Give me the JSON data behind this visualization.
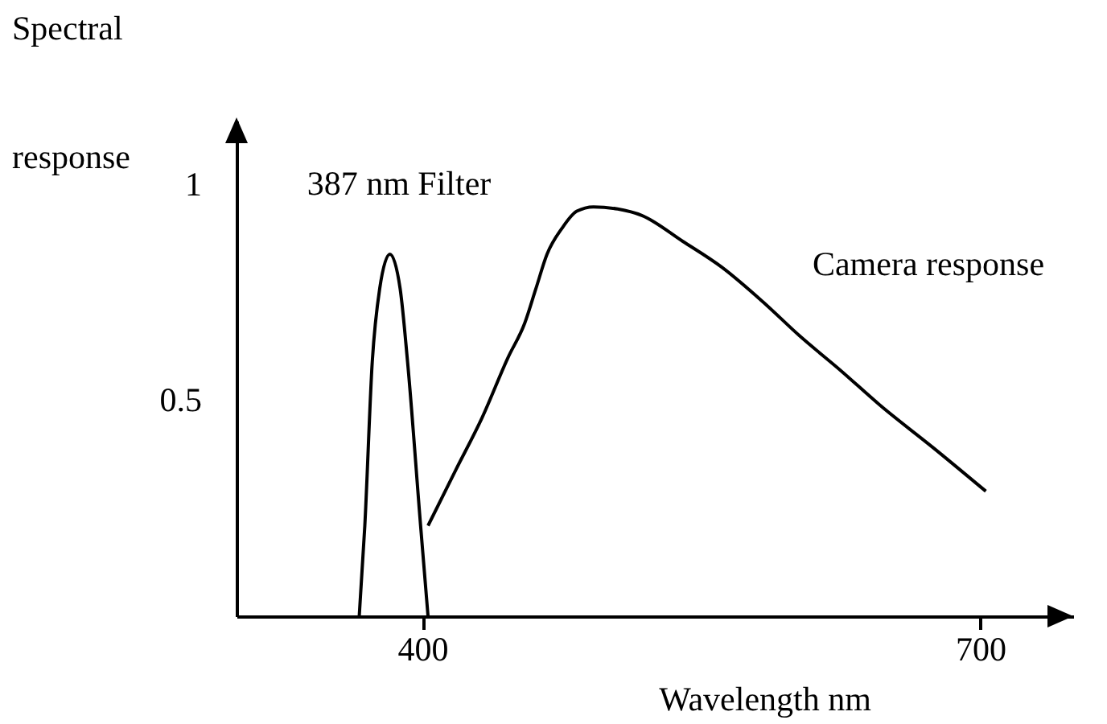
{
  "chart_data": {
    "type": "line",
    "xlabel": "Wavelength nm",
    "ylabel": "Spectral response",
    "xlim": [
      300,
      750
    ],
    "ylim": [
      0,
      1.15
    ],
    "xticks": [
      400,
      700
    ],
    "yticks": [
      0.5,
      1
    ],
    "grid": false,
    "marker": "none",
    "line_style": "solid",
    "series": [
      {
        "color": "#000000",
        "x": [
          366,
          369,
          373,
          377,
          382.5,
          388,
          392,
          399,
          403
        ],
        "values": [
          0,
          0.21,
          0.59,
          0.76,
          0.84,
          0.76,
          0.59,
          0.21,
          0
        ]
      },
      {
        "color": "#000000",
        "x": [
          403,
          418,
          432,
          446,
          455,
          461,
          467,
          475,
          483,
          492,
          505,
          518,
          540,
          561,
          583,
          603,
          625,
          646,
          675,
          703
        ],
        "values": [
          0.21,
          0.34,
          0.46,
          0.6,
          0.68,
          0.76,
          0.84,
          0.9,
          0.94,
          0.95,
          0.945,
          0.93,
          0.87,
          0.81,
          0.73,
          0.65,
          0.57,
          0.49,
          0.39,
          0.29
        ]
      }
    ],
    "annotations": [
      "387 nm Filter",
      "Camera response"
    ]
  }
}
